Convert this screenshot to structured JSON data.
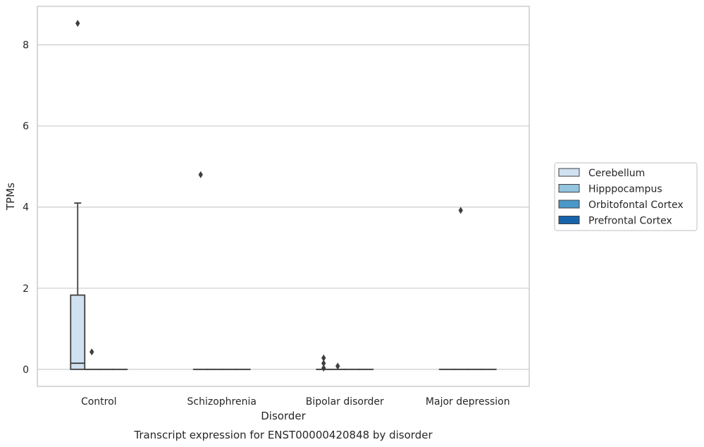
{
  "chart_data": {
    "type": "box",
    "title": "Transcript expression for ENST00000420848 by disorder",
    "xlabel": "Disorder",
    "ylabel": "TPMs",
    "categories": [
      "Control",
      "Schizophrenia",
      "Bipolar disorder",
      "Major depression"
    ],
    "ylim": [
      -0.42,
      8.95
    ],
    "yticks": [
      0,
      2,
      4,
      6,
      8
    ],
    "grid": true,
    "legend_position": "right",
    "series": [
      {
        "name": "Cerebellum",
        "color": "#d0e1f2",
        "boxes": [
          {
            "min": 0,
            "q1": 0,
            "median": 0.15,
            "q3": 1.83,
            "max": 4.1,
            "outliers": [
              8.53
            ]
          },
          {
            "min": 0,
            "q1": 0,
            "median": 0,
            "q3": 0,
            "max": 0,
            "outliers": [
              4.8
            ]
          },
          {
            "min": 0,
            "q1": 0,
            "median": 0,
            "q3": 0,
            "max": 0,
            "outliers": [
              0.28,
              0.15,
              0.03
            ]
          },
          {
            "min": 0,
            "q1": 0,
            "median": 0,
            "q3": 0,
            "max": 0,
            "outliers": []
          }
        ]
      },
      {
        "name": "Hipppocampus",
        "color": "#94c4df",
        "boxes": [
          {
            "min": 0,
            "q1": 0,
            "median": 0,
            "q3": 0,
            "max": 0,
            "outliers": [
              0.43
            ]
          },
          {
            "min": 0,
            "q1": 0,
            "median": 0,
            "q3": 0,
            "max": 0,
            "outliers": []
          },
          {
            "min": 0,
            "q1": 0,
            "median": 0,
            "q3": 0,
            "max": 0,
            "outliers": [
              0.08
            ]
          },
          {
            "min": 0,
            "q1": 0,
            "median": 0,
            "q3": 0,
            "max": 0,
            "outliers": [
              3.92
            ]
          }
        ]
      },
      {
        "name": "Orbitofontal Cortex",
        "color": "#4a98c9",
        "boxes": [
          {
            "min": 0,
            "q1": 0,
            "median": 0,
            "q3": 0,
            "max": 0,
            "outliers": []
          },
          {
            "min": 0,
            "q1": 0,
            "median": 0,
            "q3": 0,
            "max": 0,
            "outliers": []
          },
          {
            "min": 0,
            "q1": 0,
            "median": 0,
            "q3": 0,
            "max": 0,
            "outliers": []
          },
          {
            "min": 0,
            "q1": 0,
            "median": 0,
            "q3": 0,
            "max": 0,
            "outliers": []
          }
        ]
      },
      {
        "name": "Prefrontal Cortex",
        "color": "#1764ab",
        "boxes": [
          {
            "min": 0,
            "q1": 0,
            "median": 0,
            "q3": 0,
            "max": 0,
            "outliers": []
          },
          {
            "min": 0,
            "q1": 0,
            "median": 0,
            "q3": 0,
            "max": 0,
            "outliers": []
          },
          {
            "min": 0,
            "q1": 0,
            "median": 0,
            "q3": 0,
            "max": 0,
            "outliers": []
          },
          {
            "min": 0,
            "q1": 0,
            "median": 0,
            "q3": 0,
            "max": 0,
            "outliers": []
          }
        ]
      }
    ]
  }
}
